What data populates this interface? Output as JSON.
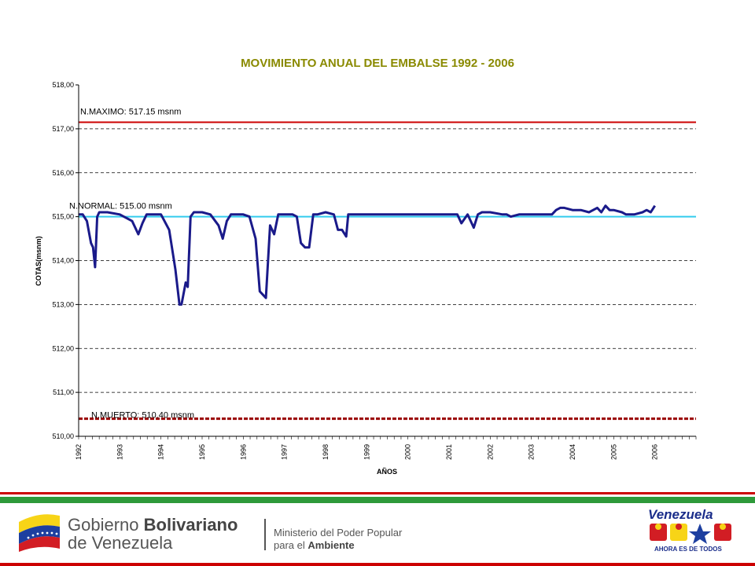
{
  "chart_data": {
    "type": "line",
    "title": "MOVIMIENTO ANUAL DEL EMBALSE 1992 - 2006",
    "xlabel": "AÑOS",
    "ylabel": "COTAS(msnm)",
    "ylim": [
      510,
      518
    ],
    "xlim": [
      1992,
      2007
    ],
    "y_ticks": [
      "510,00",
      "511,00",
      "512,00",
      "513,00",
      "514,00",
      "515,00",
      "516,00",
      "517,00",
      "518,00"
    ],
    "x_ticks": [
      "1992",
      "1993",
      "1994",
      "1995",
      "1996",
      "1997",
      "1998",
      "1999",
      "2000",
      "2001",
      "2002",
      "2003",
      "2004",
      "2005",
      "2006"
    ],
    "grid": "horizontal dashed",
    "reference_lines": [
      {
        "label": "N.MAXIMO: 517.15 msnm",
        "value": 517.15,
        "color": "#cc0000"
      },
      {
        "label": "N.NORMAL: 515.00 msnm",
        "value": 515.0,
        "color": "#33ccee"
      },
      {
        "label": "N.MUERTO: 510.40 msnm",
        "value": 510.4,
        "color": "#990000"
      }
    ],
    "series": [
      {
        "color": "#1a1a8a",
        "x": [
          1992.0,
          1992.1,
          1992.2,
          1992.3,
          1992.35,
          1992.4,
          1992.45,
          1992.5,
          1992.55,
          1992.7,
          1993.0,
          1993.3,
          1993.45,
          1993.55,
          1993.65,
          1993.8,
          1994.0,
          1994.2,
          1994.35,
          1994.45,
          1994.5,
          1994.6,
          1994.65,
          1994.72,
          1994.8,
          1995.0,
          1995.2,
          1995.4,
          1995.5,
          1995.6,
          1995.7,
          1995.85,
          1996.0,
          1996.15,
          1996.3,
          1996.4,
          1996.5,
          1996.55,
          1996.65,
          1996.75,
          1996.85,
          1997.0,
          1997.2,
          1997.3,
          1997.4,
          1997.5,
          1997.6,
          1997.7,
          1997.8,
          1998.0,
          1998.2,
          1998.3,
          1998.4,
          1998.5,
          1998.55,
          1998.6,
          1999.0,
          1999.5,
          2000.0,
          2000.4,
          2000.6,
          2001.0,
          2001.2,
          2001.3,
          2001.45,
          2001.6,
          2001.7,
          2001.8,
          2002.0,
          2002.3,
          2002.4,
          2002.5,
          2002.7,
          2003.0,
          2003.3,
          2003.5,
          2003.6,
          2003.7,
          2003.8,
          2004.0,
          2004.2,
          2004.4,
          2004.6,
          2004.7,
          2004.8,
          2004.9,
          2005.0,
          2005.2,
          2005.3,
          2005.5,
          2005.7,
          2005.8,
          2005.9,
          2006.0
        ],
        "values": [
          515.05,
          515.05,
          514.9,
          514.4,
          514.3,
          513.85,
          515.0,
          515.1,
          515.1,
          515.1,
          515.05,
          514.9,
          514.6,
          514.85,
          515.05,
          515.05,
          515.05,
          514.7,
          513.8,
          513.0,
          513.0,
          513.5,
          513.4,
          515.0,
          515.1,
          515.1,
          515.05,
          514.8,
          514.5,
          514.9,
          515.05,
          515.05,
          515.05,
          515.0,
          514.5,
          513.3,
          513.2,
          513.15,
          514.8,
          514.6,
          515.05,
          515.05,
          515.05,
          515.0,
          514.4,
          514.3,
          514.3,
          515.05,
          515.05,
          515.1,
          515.05,
          514.7,
          514.7,
          514.55,
          515.05,
          515.05,
          515.05,
          515.05,
          515.05,
          515.05,
          515.05,
          515.05,
          515.05,
          514.85,
          515.05,
          514.75,
          515.05,
          515.1,
          515.1,
          515.05,
          515.05,
          515.0,
          515.05,
          515.05,
          515.05,
          515.05,
          515.15,
          515.2,
          515.2,
          515.15,
          515.15,
          515.1,
          515.2,
          515.1,
          515.25,
          515.15,
          515.15,
          515.1,
          515.05,
          515.05,
          515.1,
          515.15,
          515.1,
          515.25
        ]
      }
    ]
  },
  "footer": {
    "gov_line1_a": "Gobierno ",
    "gov_line1_b": "Bolivariano",
    "gov_line2": "de Venezuela",
    "min_line1": "Ministerio del Poder Popular",
    "min_line2_a": "para el ",
    "min_line2_b": "Ambiente",
    "brand_word": "Venezuela",
    "brand_slogan": "AHORA ES DE TODOS"
  }
}
